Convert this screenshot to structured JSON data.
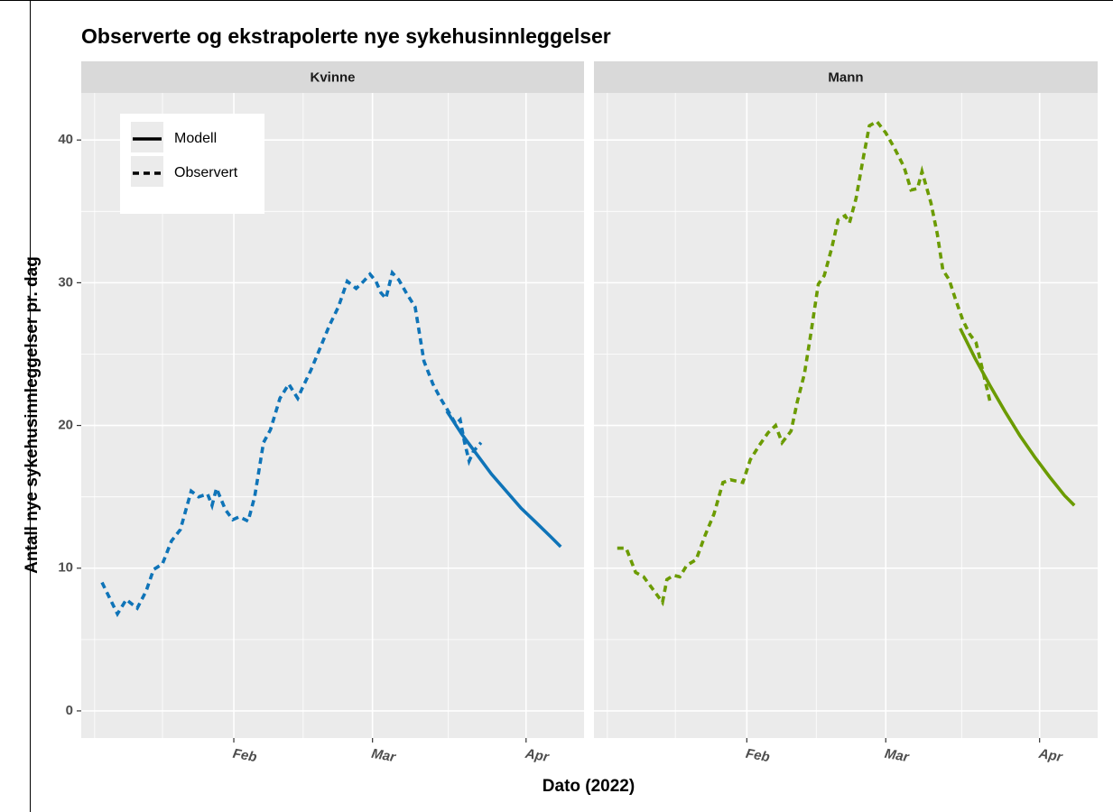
{
  "chart_data": {
    "type": "line",
    "title": "Observerte og ekstrapolerte nye sykehusinnleggelser",
    "x_label": "Dato (2022)",
    "y_label": "Antall nye sykehusinnleggelser pr. dag",
    "xlim": [
      0.2,
      101.7
    ],
    "xticks": [
      {
        "value": 31,
        "label": "Feb"
      },
      {
        "value": 59,
        "label": "Mar"
      },
      {
        "value": 90,
        "label": "Apr"
      }
    ],
    "x_minor_grid": [
      2.9,
      16.6,
      45,
      74.3
    ],
    "ylim": [
      -1.9,
      43.3
    ],
    "yticks": [
      0,
      10,
      20,
      30,
      40
    ],
    "y_minor_grid": [
      5,
      15,
      25,
      35
    ],
    "grid": true,
    "legend_position": "top-left",
    "panels": [
      {
        "title": "Kvinne",
        "color": "#0f74b8",
        "series": [
          {
            "name": "Modell",
            "linetype": "solid",
            "x": [
              74,
              77,
              80,
              83,
              86,
              89,
              92,
              95,
              97
            ],
            "values": [
              21.0,
              19.4,
              18.0,
              16.6,
              15.4,
              14.2,
              13.2,
              12.2,
              11.5
            ]
          },
          {
            "name": "Observert",
            "linetype": "dashed",
            "x": [
              4.4,
              7.5,
              9.3,
              11.5,
              13.3,
              14.8,
              16.6,
              18.4,
              20.2,
              22.4,
              23.9,
              25.7,
              26.6,
              27.5,
              29.3,
              30.8,
              32.1,
              33.9,
              35.2,
              37.0,
              38.4,
              40.3,
              42.1,
              43.9,
              44.8,
              46.6,
              48.5,
              50.3,
              52.1,
              53.9,
              55.7,
              57.2,
              58.5,
              59.7,
              60.7,
              61.7,
              63.0,
              64.3,
              65.8,
              67.6,
              69.4,
              71.2,
              72.7,
              74.3,
              75.8,
              76.7,
              77.6,
              78.5,
              79.4,
              80.9
            ],
            "values": [
              9.0,
              6.8,
              7.8,
              7.2,
              8.4,
              9.9,
              10.3,
              11.9,
              12.7,
              15.4,
              15.0,
              15.2,
              14.4,
              15.6,
              14.1,
              13.4,
              13.6,
              13.3,
              15.0,
              18.8,
              19.7,
              21.9,
              22.9,
              21.9,
              22.6,
              23.9,
              25.5,
              27.0,
              28.3,
              30.1,
              29.6,
              30.1,
              30.6,
              30.1,
              29.3,
              28.9,
              30.7,
              30.2,
              29.3,
              28.3,
              24.5,
              22.9,
              21.9,
              21.0,
              20.1,
              20.4,
              18.8,
              17.5,
              18.2,
              18.8
            ]
          }
        ]
      },
      {
        "title": "Mann",
        "color": "#6b9b00",
        "series": [
          {
            "name": "Modell",
            "linetype": "solid",
            "x": [
              74,
              77,
              80,
              83,
              86,
              89,
              92,
              95,
              97
            ],
            "values": [
              26.8,
              24.7,
              22.8,
              21.0,
              19.3,
              17.8,
              16.4,
              15.1,
              14.4
            ]
          },
          {
            "name": "Observert",
            "linetype": "dashed",
            "x": [
              4.9,
              6.7,
              8.6,
              10.2,
              11.7,
              14.0,
              14.9,
              16.2,
              17.5,
              18.9,
              20.8,
              22.6,
              24.4,
              26.2,
              27.7,
              29.0,
              30.2,
              31.7,
              33.5,
              35.3,
              36.8,
              38.1,
              39.9,
              41.2,
              42.6,
              43.9,
              45.4,
              46.6,
              48.1,
              49.4,
              50.8,
              51.7,
              53.0,
              54.5,
              55.7,
              57.2,
              59.0,
              60.8,
              62.7,
              64.1,
              65.4,
              66.3,
              68.1,
              69.4,
              70.5,
              71.8,
              73.0,
              74.5,
              75.9,
              77.2,
              78.7,
              80.0
            ],
            "values": [
              11.4,
              11.4,
              9.7,
              9.4,
              8.7,
              7.6,
              9.2,
              9.5,
              9.4,
              10.2,
              10.6,
              12.3,
              13.8,
              16.0,
              16.2,
              16.1,
              16.0,
              17.6,
              18.6,
              19.5,
              20.0,
              18.8,
              19.6,
              21.7,
              23.6,
              26.4,
              29.9,
              30.5,
              32.4,
              34.4,
              34.7,
              34.2,
              35.9,
              38.8,
              41.0,
              41.3,
              40.5,
              39.4,
              38.1,
              36.5,
              36.6,
              37.8,
              35.6,
              33.4,
              30.9,
              30.2,
              28.9,
              27.4,
              26.4,
              25.8,
              23.6,
              21.7
            ]
          }
        ]
      }
    ]
  }
}
